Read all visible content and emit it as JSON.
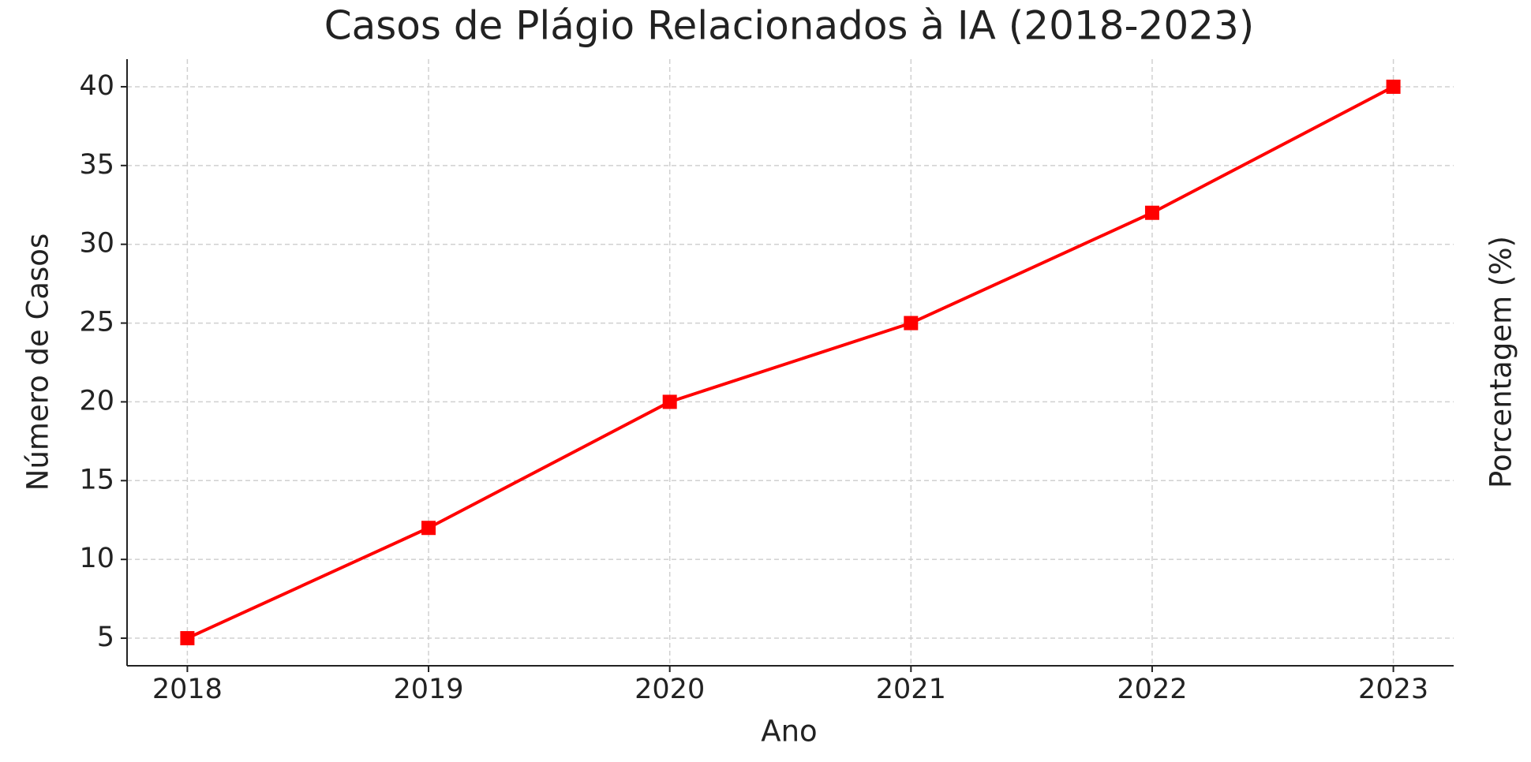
{
  "chart_data": {
    "type": "line",
    "title": "Casos de Plágio Relacionados à IA (2018-2023)",
    "x_label": "Ano",
    "y_label": "Número de Casos",
    "y2_label": "Porcentagem (%)",
    "x": [
      2018,
      2019,
      2020,
      2021,
      2022,
      2023
    ],
    "series": [
      {
        "color": "#ff0000",
        "marker": "square",
        "values": [
          5,
          12,
          20,
          25,
          32,
          40
        ]
      }
    ],
    "xlim": [
      2017.75,
      2023.25
    ],
    "xticks": [
      2018,
      2019,
      2020,
      2021,
      2022,
      2023
    ],
    "ylim": [
      3.25,
      41.75
    ],
    "yticks": [
      5,
      10,
      15,
      20,
      25,
      30,
      35,
      40
    ],
    "grid": true
  }
}
